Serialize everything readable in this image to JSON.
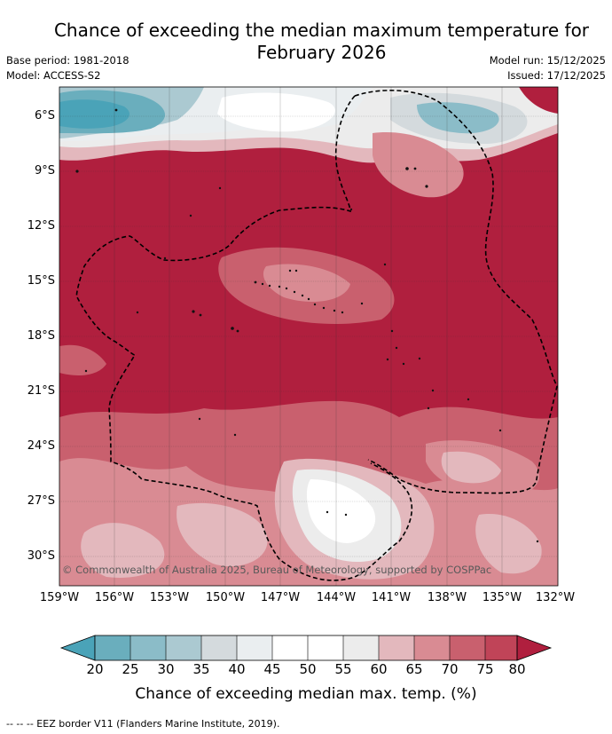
{
  "header": {
    "title_line1": "Chance of exceeding the median maximum temperature for",
    "title_line2": "February 2026",
    "base_period": "Base period: 1981-2018",
    "model": "Model: ACCESS-S2",
    "model_run": "Model run: 15/12/2025",
    "issued": "Issued: 17/12/2025"
  },
  "map": {
    "lat_labels": [
      "6°S",
      "9°S",
      "12°S",
      "15°S",
      "18°S",
      "21°S",
      "24°S",
      "27°S",
      "30°S"
    ],
    "lon_labels": [
      "159°W",
      "156°W",
      "153°W",
      "150°W",
      "147°W",
      "144°W",
      "141°W",
      "138°W",
      "135°W",
      "132°W"
    ],
    "copyright": "© Commonwealth of Australia 2025, Bureau of Meteorology, supported by COSPPac",
    "dominant_category": "80+",
    "colors": {
      "very_high": "#b01f3e",
      "high": "#c9606e",
      "medium_high": "#d98b93",
      "neutral": "#ffffff",
      "low": "#4aa3b8"
    }
  },
  "colorbar": {
    "ticks": [
      "20",
      "25",
      "30",
      "35",
      "40",
      "45",
      "50",
      "55",
      "60",
      "65",
      "70",
      "75",
      "80"
    ],
    "title": "Chance of exceeding median max. temp. (%)",
    "colors": [
      "#4aa3b8",
      "#6aaebd",
      "#8bbcc8",
      "#abc9d1",
      "#d4dadd",
      "#eaeef0",
      "#ffffff",
      "#ffffff",
      "#ececec",
      "#e3b8bd",
      "#d98b93",
      "#c9606e",
      "#c04458",
      "#b01f3e"
    ]
  },
  "footnote": "-- -- -- EEZ border V11 (Flanders Marine Institute, 2019)."
}
